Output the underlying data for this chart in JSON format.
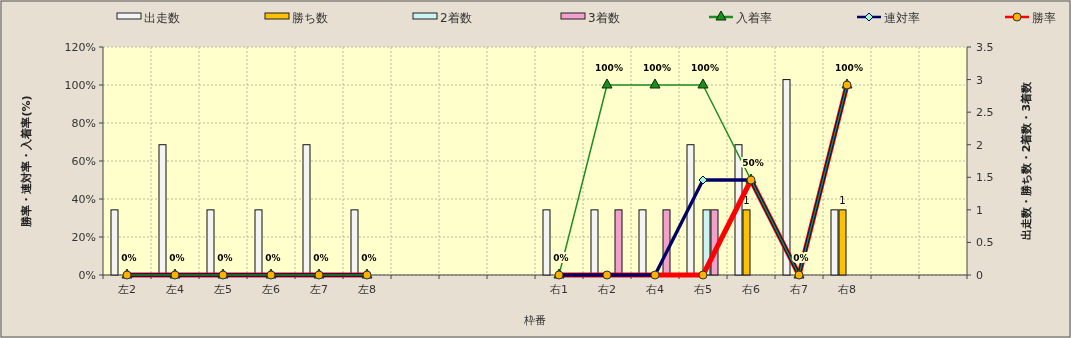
{
  "chart_data": {
    "type": "bar",
    "xlabel": "枠番",
    "ylabel": "勝率・連対率・入着率(%)",
    "y2label": "出走数・勝ち数・2着数・3着数",
    "categories": [
      "左2",
      "左4",
      "左5",
      "左6",
      "左7",
      "左8",
      null,
      null,
      null,
      "右1",
      "右2",
      "右4",
      "右5",
      "右6",
      "右7",
      "右8",
      null,
      null
    ],
    "series": [
      {
        "name": "出走数",
        "type": "bar",
        "axis": "y2",
        "color": "#f4f4f4",
        "values": [
          1,
          2,
          1,
          1,
          2,
          1,
          null,
          null,
          null,
          1,
          1,
          1,
          2,
          2,
          3,
          1,
          null,
          null
        ]
      },
      {
        "name": "勝ち数",
        "type": "bar",
        "axis": "y2",
        "color": "#ffc000",
        "values": [
          0,
          0,
          0,
          0,
          0,
          0,
          null,
          null,
          null,
          0,
          0,
          0,
          0,
          1,
          0,
          1,
          null,
          null
        ],
        "value_labels": [
          null,
          null,
          null,
          null,
          null,
          null,
          null,
          null,
          null,
          null,
          null,
          null,
          null,
          "1",
          null,
          "1",
          null,
          null
        ]
      },
      {
        "name": "2着数",
        "type": "bar",
        "axis": "y2",
        "color": "#ccf2f2",
        "values": [
          0,
          0,
          0,
          0,
          0,
          0,
          null,
          null,
          null,
          0,
          0,
          0,
          1,
          0,
          0,
          0,
          null,
          null
        ]
      },
      {
        "name": "3着数",
        "type": "bar",
        "axis": "y2",
        "color": "#f4a0cc",
        "values": [
          0,
          0,
          0,
          0,
          0,
          0,
          null,
          null,
          null,
          0,
          1,
          1,
          1,
          0,
          0,
          0,
          null,
          null
        ]
      },
      {
        "name": "入着率",
        "type": "line",
        "axis": "y",
        "color": "#1e8c1e",
        "marker": "triangle",
        "values": [
          0,
          0,
          0,
          0,
          0,
          0,
          null,
          null,
          null,
          0,
          100,
          100,
          100,
          50,
          0,
          100,
          null,
          null
        ],
        "value_labels": [
          "0%",
          "0%",
          "0%",
          "0%",
          "0%",
          "0%",
          null,
          null,
          null,
          "0%",
          "100%",
          "100%",
          "100%",
          "50%",
          "0%",
          "100%",
          null,
          null
        ]
      },
      {
        "name": "連対率",
        "type": "line",
        "axis": "y",
        "color": "#000066",
        "marker": "diamond",
        "values": [
          0,
          0,
          0,
          0,
          0,
          0,
          null,
          null,
          null,
          0,
          0,
          0,
          50,
          50,
          0,
          100,
          null,
          null
        ]
      },
      {
        "name": "勝率",
        "type": "line",
        "axis": "y",
        "color": "#ff0000",
        "marker": "circle",
        "values": [
          0,
          0,
          0,
          0,
          0,
          0,
          null,
          null,
          null,
          0,
          0,
          0,
          0,
          50,
          0,
          100,
          null,
          null
        ]
      }
    ],
    "ylim": [
      0,
      120
    ],
    "yticks": [
      {
        "value": 0,
        "label": "0%"
      },
      {
        "value": 20,
        "label": "20%"
      },
      {
        "value": 40,
        "label": "40%"
      },
      {
        "value": 60,
        "label": "60%"
      },
      {
        "value": 80,
        "label": "80%"
      },
      {
        "value": 100,
        "label": "100%"
      },
      {
        "value": 120,
        "label": "120%"
      }
    ],
    "y2lim": [
      0,
      3.5
    ],
    "y2ticks": [
      0,
      0.5,
      1,
      1.5,
      2,
      2.5,
      3,
      3.5
    ],
    "grid": true,
    "legend": "top"
  }
}
